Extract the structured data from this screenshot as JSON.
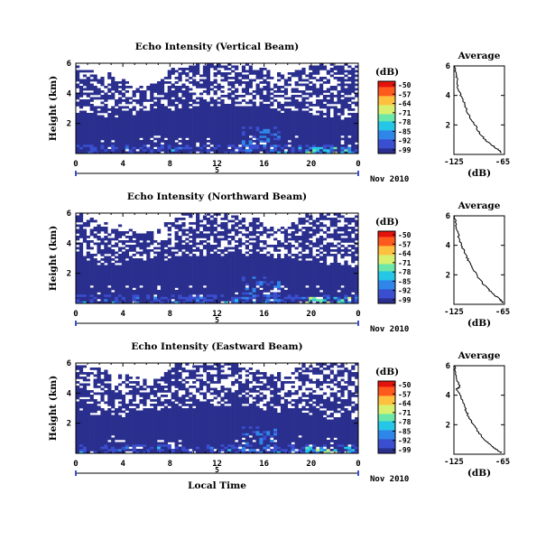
{
  "chart_data": [
    {
      "type": "heatmap",
      "title": "Echo Intensity (Vertical Beam)",
      "ylabel": "Height (km)",
      "xlabel": "",
      "x_ticks": [
        "0",
        "4",
        "8",
        "12",
        "16",
        "20",
        "0"
      ],
      "y_ticks": [
        "2",
        "4",
        "6"
      ],
      "xlim": [
        0,
        24
      ],
      "ylim": [
        0,
        6
      ],
      "date_marker": "5",
      "date_label": "Nov 2010",
      "colorbar": {
        "label": "(dB)",
        "ticks": [
          "-50",
          "-57",
          "-64",
          "-71",
          "-78",
          "-85",
          "-92",
          "-99"
        ]
      },
      "color_scale": [
        "#2a2f8e",
        "#3a4fd0",
        "#2f86e8",
        "#26c6e6",
        "#6be8a8",
        "#d8f070",
        "#ffc040",
        "#ff5a1e",
        "#e3120b"
      ],
      "cloud_top_km": [
        6,
        5.4,
        5.2,
        5.1,
        5.0,
        4.8,
        4.5,
        4.8,
        5.5,
        6,
        6,
        6,
        6,
        6,
        5.9,
        5.8,
        5.6,
        5.2,
        5.5,
        5.8,
        6,
        6,
        6,
        6,
        6
      ],
      "layer_top_km": [
        2.8,
        2.6,
        2.5,
        2.5,
        2.6,
        2.7,
        2.8,
        2.9,
        3.0,
        3.0,
        3.1,
        3.1,
        3.2,
        3.2,
        3.1,
        3.1,
        3.0,
        2.9,
        2.8,
        2.7,
        2.6,
        2.5,
        2.5,
        2.4,
        2.4
      ],
      "average": {
        "title": "Average",
        "xlabel": "(dB)",
        "x_ticks": [
          "-125",
          "-65"
        ],
        "y_ticks": [
          "2",
          "4",
          "6"
        ],
        "xlim": [
          -125,
          -65
        ],
        "ylim": [
          0,
          6
        ],
        "profile": [
          {
            "h": 0.1,
            "db": -68
          },
          {
            "h": 0.3,
            "db": -72
          },
          {
            "h": 0.6,
            "db": -79
          },
          {
            "h": 1.0,
            "db": -88
          },
          {
            "h": 1.5,
            "db": -95
          },
          {
            "h": 2.0,
            "db": -100
          },
          {
            "h": 2.5,
            "db": -106
          },
          {
            "h": 3.0,
            "db": -110
          },
          {
            "h": 3.5,
            "db": -113
          },
          {
            "h": 4.0,
            "db": -117
          },
          {
            "h": 4.5,
            "db": -120
          },
          {
            "h": 5.0,
            "db": -121
          },
          {
            "h": 5.5,
            "db": -123
          },
          {
            "h": 6.0,
            "db": -124
          }
        ]
      }
    },
    {
      "type": "heatmap",
      "title": "Echo Intensity (Northward Beam)",
      "ylabel": "Height (km)",
      "xlabel": "",
      "x_ticks": [
        "0",
        "4",
        "8",
        "12",
        "16",
        "20",
        "0"
      ],
      "y_ticks": [
        "2",
        "4",
        "6"
      ],
      "xlim": [
        0,
        24
      ],
      "ylim": [
        0,
        6
      ],
      "date_marker": "5",
      "date_label": "Nov 2010",
      "colorbar": {
        "label": "(dB)",
        "ticks": [
          "-50",
          "-57",
          "-64",
          "-71",
          "-78",
          "-85",
          "-92",
          "-99"
        ]
      },
      "color_scale": [
        "#2a2f8e",
        "#3a4fd0",
        "#2f86e8",
        "#26c6e6",
        "#6be8a8",
        "#d8f070",
        "#ffc040",
        "#ff5a1e",
        "#e3120b"
      ],
      "cloud_top_km": [
        6,
        5.6,
        5.4,
        5.2,
        5.1,
        4.9,
        4.6,
        4.9,
        5.4,
        6,
        6,
        6,
        6,
        6,
        5.8,
        5.6,
        5.3,
        5.0,
        5.2,
        5.6,
        6,
        6,
        6,
        6,
        6
      ],
      "layer_top_km": [
        3.0,
        2.8,
        2.6,
        2.6,
        2.7,
        2.8,
        2.9,
        3.0,
        3.1,
        3.2,
        3.2,
        3.3,
        3.3,
        3.3,
        3.2,
        3.2,
        3.1,
        3.0,
        2.9,
        2.8,
        2.7,
        2.6,
        2.6,
        2.5,
        2.5
      ],
      "average": {
        "title": "Average",
        "xlabel": "(dB)",
        "x_ticks": [
          "-125",
          "-65"
        ],
        "y_ticks": [
          "2",
          "4",
          "6"
        ],
        "xlim": [
          -125,
          -65
        ],
        "ylim": [
          0,
          6
        ],
        "profile": [
          {
            "h": 0.1,
            "db": -67
          },
          {
            "h": 0.3,
            "db": -70
          },
          {
            "h": 0.6,
            "db": -76
          },
          {
            "h": 1.0,
            "db": -84
          },
          {
            "h": 1.5,
            "db": -92
          },
          {
            "h": 2.0,
            "db": -98
          },
          {
            "h": 2.5,
            "db": -104
          },
          {
            "h": 3.0,
            "db": -108
          },
          {
            "h": 3.5,
            "db": -112
          },
          {
            "h": 4.0,
            "db": -116
          },
          {
            "h": 4.5,
            "db": -119
          },
          {
            "h": 5.0,
            "db": -121
          },
          {
            "h": 5.5,
            "db": -123
          },
          {
            "h": 6.0,
            "db": -124
          }
        ]
      }
    },
    {
      "type": "heatmap",
      "title": "Echo Intensity (Eastward Beam)",
      "ylabel": "Height (km)",
      "xlabel": "Local Time",
      "x_ticks": [
        "0",
        "4",
        "8",
        "12",
        "16",
        "20",
        "0"
      ],
      "y_ticks": [
        "2",
        "4",
        "6"
      ],
      "xlim": [
        0,
        24
      ],
      "ylim": [
        0,
        6
      ],
      "date_marker": "5",
      "date_label": "Nov 2010",
      "colorbar": {
        "label": "(dB)",
        "ticks": [
          "-50",
          "-57",
          "-64",
          "-71",
          "-78",
          "-85",
          "-92",
          "-99"
        ]
      },
      "color_scale": [
        "#2a2f8e",
        "#3a4fd0",
        "#2f86e8",
        "#26c6e6",
        "#6be8a8",
        "#d8f070",
        "#ffc040",
        "#ff5a1e",
        "#e3120b"
      ],
      "cloud_top_km": [
        6,
        5.7,
        5.5,
        5.3,
        5.2,
        5.0,
        4.7,
        5.0,
        5.6,
        6,
        6,
        6,
        6,
        6,
        5.9,
        5.7,
        5.4,
        5.1,
        5.3,
        5.7,
        6,
        6,
        6,
        6,
        6
      ],
      "layer_top_km": [
        2.9,
        2.7,
        2.5,
        2.4,
        2.5,
        2.7,
        2.8,
        2.9,
        3.0,
        3.1,
        3.1,
        3.2,
        3.2,
        3.2,
        3.1,
        3.0,
        2.9,
        2.8,
        2.7,
        2.6,
        2.5,
        2.5,
        2.4,
        2.4,
        2.4
      ],
      "average": {
        "title": "Average",
        "xlabel": "(dB)",
        "x_ticks": [
          "-125",
          "-65"
        ],
        "y_ticks": [
          "2",
          "4",
          "6"
        ],
        "xlim": [
          -125,
          -65
        ],
        "ylim": [
          0,
          6
        ],
        "profile": [
          {
            "h": 0.1,
            "db": -69
          },
          {
            "h": 0.3,
            "db": -74
          },
          {
            "h": 0.6,
            "db": -81
          },
          {
            "h": 1.0,
            "db": -89
          },
          {
            "h": 1.5,
            "db": -96
          },
          {
            "h": 2.0,
            "db": -102
          },
          {
            "h": 2.5,
            "db": -107
          },
          {
            "h": 3.0,
            "db": -111
          },
          {
            "h": 3.5,
            "db": -114
          },
          {
            "h": 4.0,
            "db": -118
          },
          {
            "h": 4.4,
            "db": -122
          },
          {
            "h": 4.6,
            "db": -118
          },
          {
            "h": 5.0,
            "db": -121
          },
          {
            "h": 5.5,
            "db": -123
          },
          {
            "h": 6.0,
            "db": -124
          }
        ]
      }
    }
  ]
}
